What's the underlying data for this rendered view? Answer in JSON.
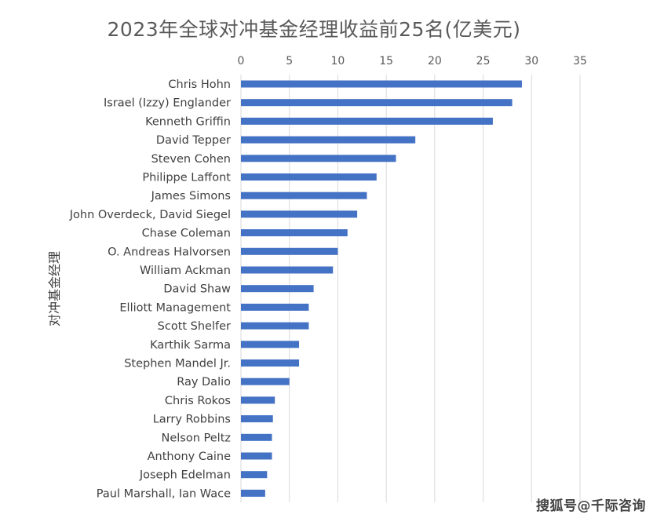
{
  "chart_data": {
    "type": "bar",
    "orientation": "horizontal",
    "title": "2023年全球对冲基金经理收益前25名(亿美元)",
    "xlabel": "",
    "ylabel": "对冲基金经理",
    "xlim": [
      0,
      35
    ],
    "x_ticks": [
      0,
      5,
      10,
      15,
      20,
      25,
      30,
      35
    ],
    "x_axis_position": "top",
    "grid": true,
    "legend": "none",
    "bar_color": "#4472C4",
    "categories": [
      "Chris Hohn",
      "Israel (Izzy) Englander",
      "Kenneth Griffin",
      "David Tepper",
      "Steven Cohen",
      "Philippe Laffont",
      "James Simons",
      "John Overdeck, David Siegel",
      "Chase Coleman",
      "O. Andreas Halvorsen",
      "William Ackman",
      "David Shaw",
      "Elliott Management",
      "Scott Shelfer",
      "Karthik Sarma",
      "Stephen Mandel Jr.",
      "Ray Dalio",
      "Chris Rokos",
      "Larry Robbins",
      "Nelson Peltz",
      "Anthony Caine",
      "Joseph Edelman",
      "Paul Marshall, Ian Wace"
    ],
    "values": [
      29,
      28,
      26,
      18,
      16,
      14,
      13,
      12,
      11,
      10,
      9.5,
      7.5,
      7,
      7,
      6,
      6,
      5,
      3.5,
      3.3,
      3.2,
      3.2,
      2.7,
      2.5
    ]
  },
  "watermark": "搜狐号@千际咨询"
}
